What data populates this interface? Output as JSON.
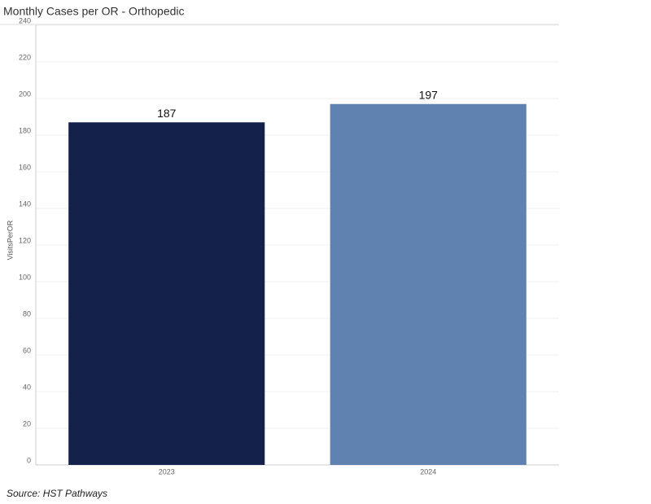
{
  "chart_data": {
    "type": "bar",
    "title": "Monthly Cases per OR - Orthopedic",
    "y_label": "VisitsPerOR",
    "categories": [
      "2023",
      "2024"
    ],
    "values": [
      187,
      197
    ],
    "colors": [
      "#14214a",
      "#5f82b0"
    ],
    "ylim": [
      0,
      240
    ],
    "yticks": [
      0,
      20,
      40,
      60,
      80,
      100,
      120,
      140,
      160,
      180,
      200,
      220,
      240
    ],
    "grid": true,
    "source": "Source: HST Pathways"
  }
}
